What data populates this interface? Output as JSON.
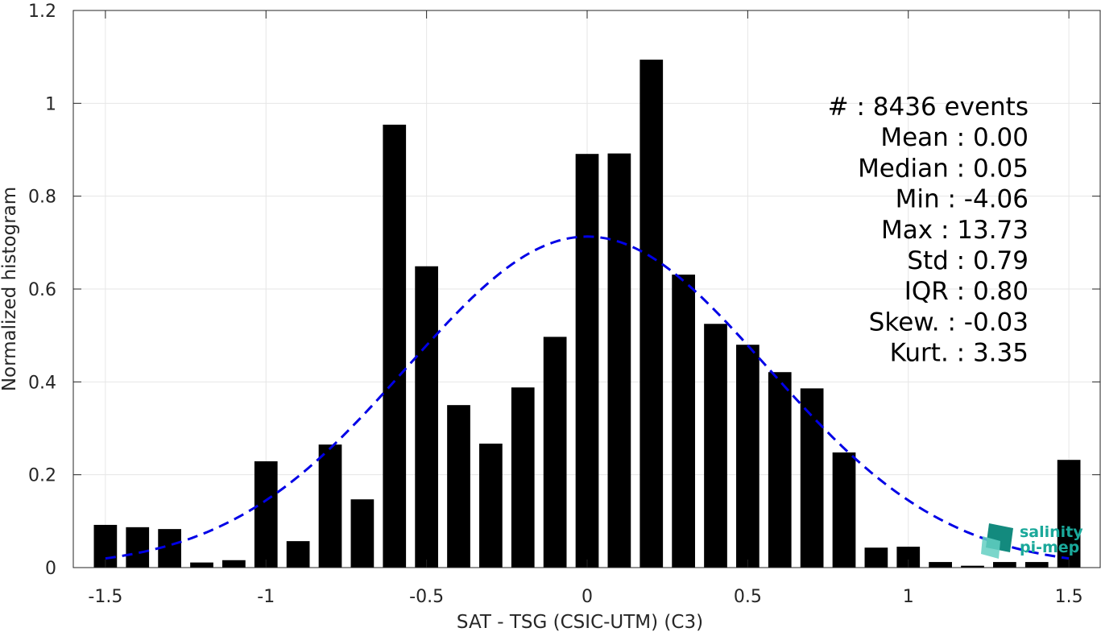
{
  "chart_data": {
    "type": "bar",
    "xlabel": "SAT - TSG (CSIC-UTM) (C3)",
    "ylabel": "Normalized histogram",
    "xlim": [
      -1.6,
      1.6
    ],
    "ylim": [
      0,
      1.2
    ],
    "xticks": [
      "-1.5",
      "-1",
      "-0.5",
      "0",
      "0.5",
      "1",
      "1.5"
    ],
    "xtick_values": [
      -1.5,
      -1,
      -0.5,
      0,
      0.5,
      1,
      1.5
    ],
    "yticks": [
      "0",
      "0.2",
      "0.4",
      "0.6",
      "0.8",
      "1",
      "1.2"
    ],
    "ytick_values": [
      0,
      0.2,
      0.4,
      0.6,
      0.8,
      1,
      1.2
    ],
    "grid": true,
    "bar_color": "#000000",
    "bins": [
      {
        "x": -1.5,
        "value": 0.092
      },
      {
        "x": -1.4,
        "value": 0.087
      },
      {
        "x": -1.3,
        "value": 0.083
      },
      {
        "x": -1.2,
        "value": 0.011
      },
      {
        "x": -1.1,
        "value": 0.016
      },
      {
        "x": -1.0,
        "value": 0.229
      },
      {
        "x": -0.9,
        "value": 0.057
      },
      {
        "x": -0.8,
        "value": 0.265
      },
      {
        "x": -0.7,
        "value": 0.147
      },
      {
        "x": -0.6,
        "value": 0.954
      },
      {
        "x": -0.5,
        "value": 0.649
      },
      {
        "x": -0.4,
        "value": 0.35
      },
      {
        "x": -0.3,
        "value": 0.267
      },
      {
        "x": -0.2,
        "value": 0.388
      },
      {
        "x": -0.1,
        "value": 0.497
      },
      {
        "x": 0.0,
        "value": 0.891
      },
      {
        "x": 0.1,
        "value": 0.892
      },
      {
        "x": 0.2,
        "value": 1.094
      },
      {
        "x": 0.3,
        "value": 0.631
      },
      {
        "x": 0.4,
        "value": 0.525
      },
      {
        "x": 0.5,
        "value": 0.48
      },
      {
        "x": 0.6,
        "value": 0.421
      },
      {
        "x": 0.7,
        "value": 0.386
      },
      {
        "x": 0.8,
        "value": 0.248
      },
      {
        "x": 0.9,
        "value": 0.043
      },
      {
        "x": 1.0,
        "value": 0.045
      },
      {
        "x": 1.1,
        "value": 0.012
      },
      {
        "x": 1.2,
        "value": 0.004
      },
      {
        "x": 1.3,
        "value": 0.012
      },
      {
        "x": 1.4,
        "value": 0.012
      },
      {
        "x": 1.5,
        "value": 0.232
      }
    ],
    "fit_curve": {
      "style": "dashed",
      "color": "#0000e6",
      "mean": 0.0,
      "std": 0.56,
      "peak": 0.713,
      "x_range": [
        -1.5,
        1.5
      ]
    },
    "stats": [
      {
        "label": "#  : 8436 events"
      },
      {
        "label": "Mean : 0.00"
      },
      {
        "label": "Median : 0.05"
      },
      {
        "label": "Min : -4.06"
      },
      {
        "label": "Max : 13.73"
      },
      {
        "label": "Std : 0.79"
      },
      {
        "label": "IQR : 0.80"
      },
      {
        "label": "Skew. : -0.03"
      },
      {
        "label": "Kurt. : 3.35"
      }
    ]
  },
  "logo": {
    "line1": "salinity",
    "line2": "pi-mep",
    "colors": {
      "text": "#1aa89a",
      "mark_dark": "#138a7e",
      "mark_light": "#63cfc2"
    }
  }
}
